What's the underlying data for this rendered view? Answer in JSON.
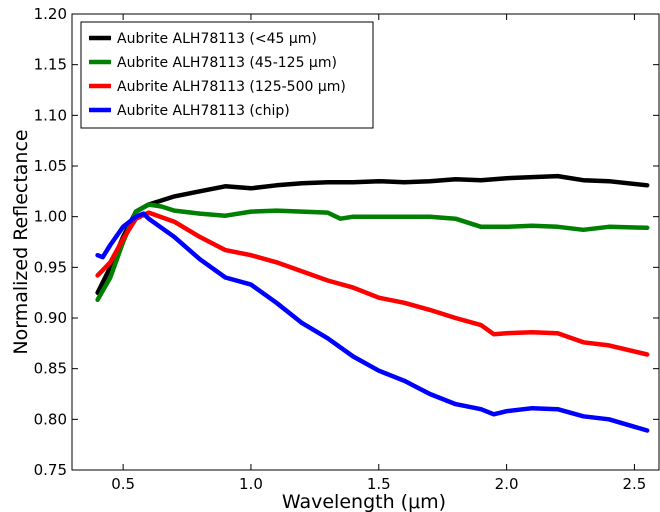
{
  "chart_data": {
    "type": "line",
    "xlabel": "Wavelength (μm)",
    "ylabel": "Normalized Reflectance",
    "xlim": [
      0.3,
      2.6
    ],
    "ylim": [
      0.75,
      1.2
    ],
    "xticks": [
      0.5,
      1.0,
      1.5,
      2.0,
      2.5
    ],
    "xtick_labels": [
      "0.5",
      "1.0",
      "1.5",
      "2.0",
      "2.5"
    ],
    "yticks": [
      0.75,
      0.8,
      0.85,
      0.9,
      0.95,
      1.0,
      1.05,
      1.1,
      1.15,
      1.2
    ],
    "ytick_labels": [
      "0.75",
      "0.80",
      "0.85",
      "0.90",
      "0.95",
      "1.00",
      "1.05",
      "1.10",
      "1.15",
      "1.20"
    ],
    "grid": false,
    "legend_position": "top-left",
    "series": [
      {
        "name": "Aubrite ALH78113 (<45 μm)",
        "color": "#000000",
        "x": [
          0.4,
          0.45,
          0.5,
          0.55,
          0.6,
          0.65,
          0.7,
          0.8,
          0.9,
          1.0,
          1.1,
          1.2,
          1.3,
          1.4,
          1.5,
          1.6,
          1.7,
          1.8,
          1.9,
          2.0,
          2.1,
          2.2,
          2.3,
          2.4,
          2.55
        ],
        "y": [
          0.925,
          0.95,
          0.98,
          1.005,
          1.012,
          1.016,
          1.02,
          1.025,
          1.03,
          1.028,
          1.031,
          1.033,
          1.034,
          1.034,
          1.035,
          1.034,
          1.035,
          1.037,
          1.036,
          1.038,
          1.039,
          1.04,
          1.036,
          1.035,
          1.031
        ]
      },
      {
        "name": "Aubrite ALH78113 (45-125 μm)",
        "color": "#008000",
        "x": [
          0.4,
          0.45,
          0.5,
          0.55,
          0.6,
          0.65,
          0.7,
          0.8,
          0.9,
          1.0,
          1.1,
          1.2,
          1.3,
          1.35,
          1.4,
          1.5,
          1.6,
          1.7,
          1.8,
          1.9,
          2.0,
          2.1,
          2.2,
          2.3,
          2.4,
          2.55
        ],
        "y": [
          0.918,
          0.94,
          0.975,
          1.005,
          1.012,
          1.01,
          1.006,
          1.003,
          1.001,
          1.005,
          1.006,
          1.005,
          1.004,
          0.998,
          1.0,
          1.0,
          1.0,
          1.0,
          0.998,
          0.99,
          0.99,
          0.991,
          0.99,
          0.987,
          0.99,
          0.989
        ]
      },
      {
        "name": "Aubrite ALH78113 (125-500 μm)",
        "color": "#ff0000",
        "x": [
          0.4,
          0.45,
          0.5,
          0.55,
          0.6,
          0.7,
          0.8,
          0.9,
          1.0,
          1.1,
          1.2,
          1.3,
          1.4,
          1.5,
          1.6,
          1.7,
          1.8,
          1.9,
          1.95,
          2.0,
          2.1,
          2.2,
          2.3,
          2.4,
          2.55
        ],
        "y": [
          0.942,
          0.955,
          0.978,
          0.998,
          1.004,
          0.995,
          0.98,
          0.967,
          0.962,
          0.955,
          0.946,
          0.937,
          0.93,
          0.92,
          0.915,
          0.908,
          0.9,
          0.893,
          0.884,
          0.885,
          0.886,
          0.885,
          0.876,
          0.873,
          0.864
        ]
      },
      {
        "name": "Aubrite ALH78113 (chip)",
        "color": "#0000ff",
        "x": [
          0.4,
          0.42,
          0.45,
          0.5,
          0.55,
          0.58,
          0.6,
          0.7,
          0.8,
          0.9,
          1.0,
          1.1,
          1.2,
          1.3,
          1.4,
          1.5,
          1.6,
          1.7,
          1.8,
          1.9,
          1.95,
          2.0,
          2.1,
          2.2,
          2.3,
          2.4,
          2.55
        ],
        "y": [
          0.962,
          0.96,
          0.972,
          0.99,
          1.0,
          1.003,
          0.998,
          0.98,
          0.958,
          0.94,
          0.933,
          0.915,
          0.895,
          0.88,
          0.862,
          0.848,
          0.838,
          0.825,
          0.815,
          0.81,
          0.805,
          0.808,
          0.811,
          0.81,
          0.803,
          0.8,
          0.789
        ]
      }
    ]
  }
}
